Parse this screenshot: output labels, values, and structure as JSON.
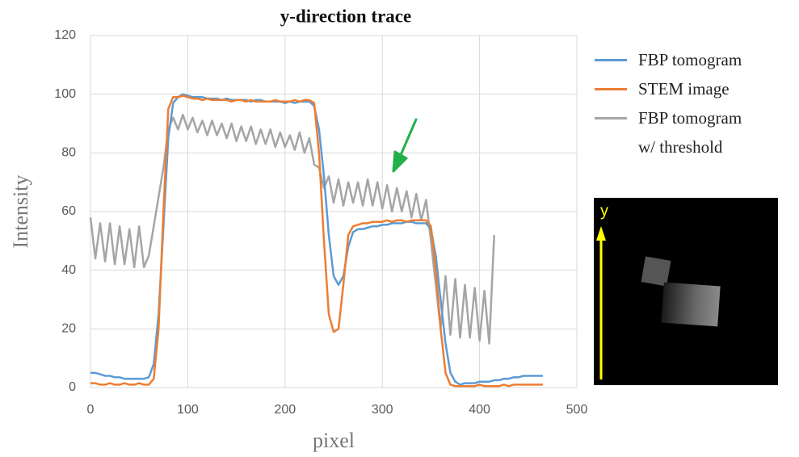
{
  "chart_data": {
    "type": "line",
    "title": "y-direction trace",
    "x_label": "pixel",
    "y_label": "Intensity",
    "x": [
      0,
      5,
      10,
      15,
      20,
      25,
      30,
      35,
      40,
      45,
      50,
      55,
      60,
      65,
      70,
      75,
      80,
      85,
      90,
      95,
      100,
      105,
      110,
      115,
      120,
      125,
      130,
      135,
      140,
      145,
      150,
      155,
      160,
      165,
      170,
      175,
      180,
      185,
      190,
      195,
      200,
      205,
      210,
      215,
      220,
      225,
      230,
      235,
      240,
      245,
      250,
      255,
      260,
      265,
      270,
      275,
      280,
      285,
      290,
      295,
      300,
      305,
      310,
      315,
      320,
      325,
      330,
      335,
      340,
      345,
      350,
      355,
      360,
      365,
      370,
      375,
      380,
      385,
      390,
      395,
      400,
      405,
      410,
      415,
      420,
      425,
      430,
      435,
      440,
      445,
      450,
      455,
      460,
      465
    ],
    "series": [
      {
        "name": "FBP tomogram",
        "color": "#5b9bd5",
        "values": [
          5,
          5,
          4.5,
          4,
          4,
          3.5,
          3.5,
          3,
          3,
          3,
          3,
          3,
          3.5,
          8,
          25,
          55,
          85,
          97,
          99,
          100,
          99.5,
          99,
          99,
          99,
          98.5,
          98.5,
          98.5,
          98,
          98.5,
          98,
          98,
          98,
          98,
          97.5,
          98,
          98,
          97.5,
          97.5,
          97.5,
          97.5,
          97,
          97.5,
          97,
          97.5,
          97.5,
          97.5,
          96,
          88,
          72,
          52,
          38,
          35,
          38,
          48,
          53,
          54,
          54,
          54.5,
          55,
          55,
          55.5,
          55.5,
          56,
          56,
          56,
          56.5,
          56.5,
          56,
          56,
          56,
          54,
          45,
          30,
          15,
          5,
          2,
          1,
          1.5,
          1.5,
          1.5,
          2,
          2,
          2,
          2.5,
          2.5,
          3,
          3,
          3.5,
          3.5,
          4,
          4,
          4,
          4,
          4
        ]
      },
      {
        "name": "STEM image",
        "color": "#ed7d31",
        "values": [
          1.5,
          1.5,
          1,
          1,
          1.5,
          1,
          1,
          1.5,
          1,
          1,
          1.5,
          1,
          1,
          3,
          20,
          60,
          95,
          99,
          99,
          99.5,
          99,
          98.5,
          98.5,
          98,
          98.5,
          98,
          98,
          98,
          98,
          97.5,
          98,
          98,
          97.5,
          98,
          97.5,
          97.5,
          97.5,
          97.5,
          98,
          97.5,
          97.5,
          97.5,
          98,
          97.5,
          98,
          98,
          97,
          80,
          50,
          25,
          19,
          20,
          35,
          52,
          55,
          55.5,
          56,
          56,
          56.5,
          56.5,
          56.5,
          57,
          56.5,
          57,
          57,
          56.5,
          57,
          57,
          57,
          57,
          55,
          40,
          20,
          5,
          1,
          0.5,
          0.5,
          0.5,
          0.5,
          0.5,
          1,
          0.5,
          0.5,
          0.5,
          0.5,
          1,
          0.5,
          1,
          1,
          1,
          1,
          1,
          1,
          1
        ]
      },
      {
        "name": "FBP tomogram w/ threshold",
        "color": "#a5a5a5",
        "values": [
          58,
          44,
          56,
          43,
          56,
          42,
          55,
          42,
          54,
          41,
          55,
          41,
          45,
          55,
          65,
          75,
          88,
          92,
          88,
          93,
          88,
          92,
          87,
          91,
          86,
          91,
          86,
          90,
          85,
          90,
          84,
          89,
          84,
          89,
          83,
          88,
          83,
          88,
          82,
          87,
          82,
          86,
          81,
          87,
          80,
          85,
          76,
          75,
          68,
          72,
          63,
          71,
          62,
          70,
          63,
          70,
          62,
          71,
          62,
          70,
          61,
          69,
          60,
          68,
          60,
          67,
          58,
          66,
          57,
          64,
          50,
          35,
          20,
          38,
          18,
          37,
          17,
          35,
          17,
          34,
          16,
          33,
          15,
          52,
          null,
          null,
          null,
          null,
          null,
          null,
          null,
          null,
          null,
          null
        ]
      }
    ],
    "xlim": [
      0,
      500
    ],
    "xticks": [
      0,
      100,
      200,
      300,
      400,
      500
    ],
    "ylim": [
      0,
      120
    ],
    "yticks": [
      0,
      20,
      40,
      60,
      80,
      100,
      120
    ],
    "grid": true,
    "annotations": [
      "y"
    ]
  }
}
